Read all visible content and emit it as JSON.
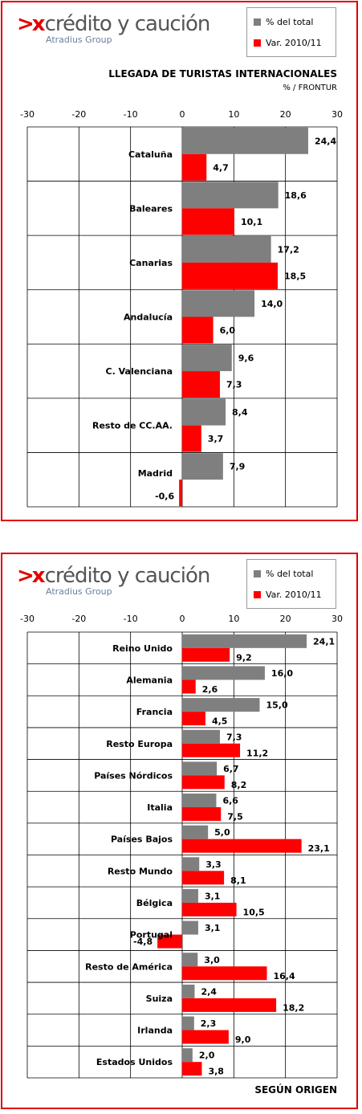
{
  "brand": {
    "logo_text": "crédito y caución",
    "logo_mark": ">x",
    "sub": "Atradius Group"
  },
  "colors": {
    "series1": "#7f7f7f",
    "series2": "#ff0000",
    "frame": "#e00000",
    "grid": "#000000"
  },
  "chart_data": [
    {
      "type": "bar",
      "orientation": "horizontal",
      "title": "LLEGADA DE TURISTAS INTERNACIONALES",
      "subtitle": "% / FRONTUR",
      "xlim": [
        -30,
        30
      ],
      "xticks": [
        "-30",
        "-20",
        "-10",
        "0",
        "10",
        "20",
        "30"
      ],
      "legend_placement": "top-right",
      "grid": true,
      "categories": [
        "Cataluña",
        "Baleares",
        "Canarias",
        "Andalucía",
        "C. Valenciana",
        "Resto de CC.AA.",
        "Madrid"
      ],
      "series": [
        {
          "name": "% del total",
          "values": [
            24.4,
            18.6,
            17.2,
            14.0,
            9.6,
            8.4,
            7.9
          ],
          "labels": [
            "24,4",
            "18,6",
            "17,2",
            "14,0",
            "9,6",
            "8,4",
            "7,9"
          ]
        },
        {
          "name": "Var. 2010/11",
          "values": [
            4.7,
            10.1,
            18.5,
            6.0,
            7.3,
            3.7,
            -0.6
          ],
          "labels": [
            "4,7",
            "10,1",
            "18,5",
            "6,0",
            "7,3",
            "3,7",
            "-0,6"
          ]
        }
      ]
    },
    {
      "type": "bar",
      "orientation": "horizontal",
      "title": "SEGÚN ORIGEN",
      "subtitle": "",
      "xlim": [
        -30,
        30
      ],
      "xticks": [
        "-30",
        "-20",
        "-10",
        "0",
        "10",
        "20",
        "30"
      ],
      "legend_placement": "top-right",
      "grid": true,
      "categories": [
        "Reino Unido",
        "Alemania",
        "Francia",
        "Resto Europa",
        "Países Nórdicos",
        "Italia",
        "Países Bajos",
        "Resto Mundo",
        "Bélgica",
        "Portugal",
        "Resto de América",
        "Suiza",
        "Irlanda",
        "Estados Unidos"
      ],
      "series": [
        {
          "name": "% del total",
          "values": [
            24.1,
            16.0,
            15.0,
            7.3,
            6.7,
            6.6,
            5.0,
            3.3,
            3.1,
            3.1,
            3.0,
            2.4,
            2.3,
            2.0
          ],
          "labels": [
            "24,1",
            "16,0",
            "15,0",
            "7,3",
            "6,7",
            "6,6",
            "5,0",
            "3,3",
            "3,1",
            "3,1",
            "3,0",
            "2,4",
            "2,3",
            "2,0"
          ]
        },
        {
          "name": "Var. 2010/11",
          "values": [
            9.2,
            2.6,
            4.5,
            11.2,
            8.2,
            7.5,
            23.1,
            8.1,
            10.5,
            -4.8,
            16.4,
            18.2,
            9.0,
            3.8
          ],
          "labels": [
            "9,2",
            "2,6",
            "4,5",
            "11,2",
            "8,2",
            "7,5",
            "23,1",
            "8,1",
            "10,5",
            "-4,8",
            "16,4",
            "18,2",
            "9,0",
            "3,8"
          ]
        }
      ]
    }
  ]
}
